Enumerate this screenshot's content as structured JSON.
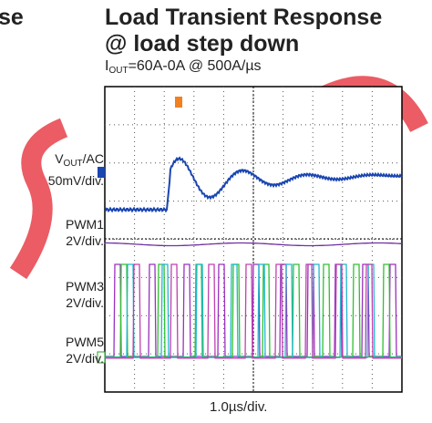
{
  "header": {
    "cut_text": "se",
    "title": "Load Transient Response",
    "title_line2": "@ load step down",
    "subtitle": {
      "prefix": "I",
      "sub": "OUT",
      "rest": "=60A-0A @ 500A/µs"
    }
  },
  "channels": [
    {
      "name": {
        "prefix": "V",
        "sub": "OUT",
        "rest": "/AC"
      },
      "scale": "50mV/div."
    },
    {
      "name": "PWM1",
      "scale": "2V/div."
    },
    {
      "name": "PWM3",
      "scale": "2V/div."
    },
    {
      "name": "PWM5",
      "scale": "2V/div."
    }
  ],
  "time_scale": "1.0µs/div."
}
